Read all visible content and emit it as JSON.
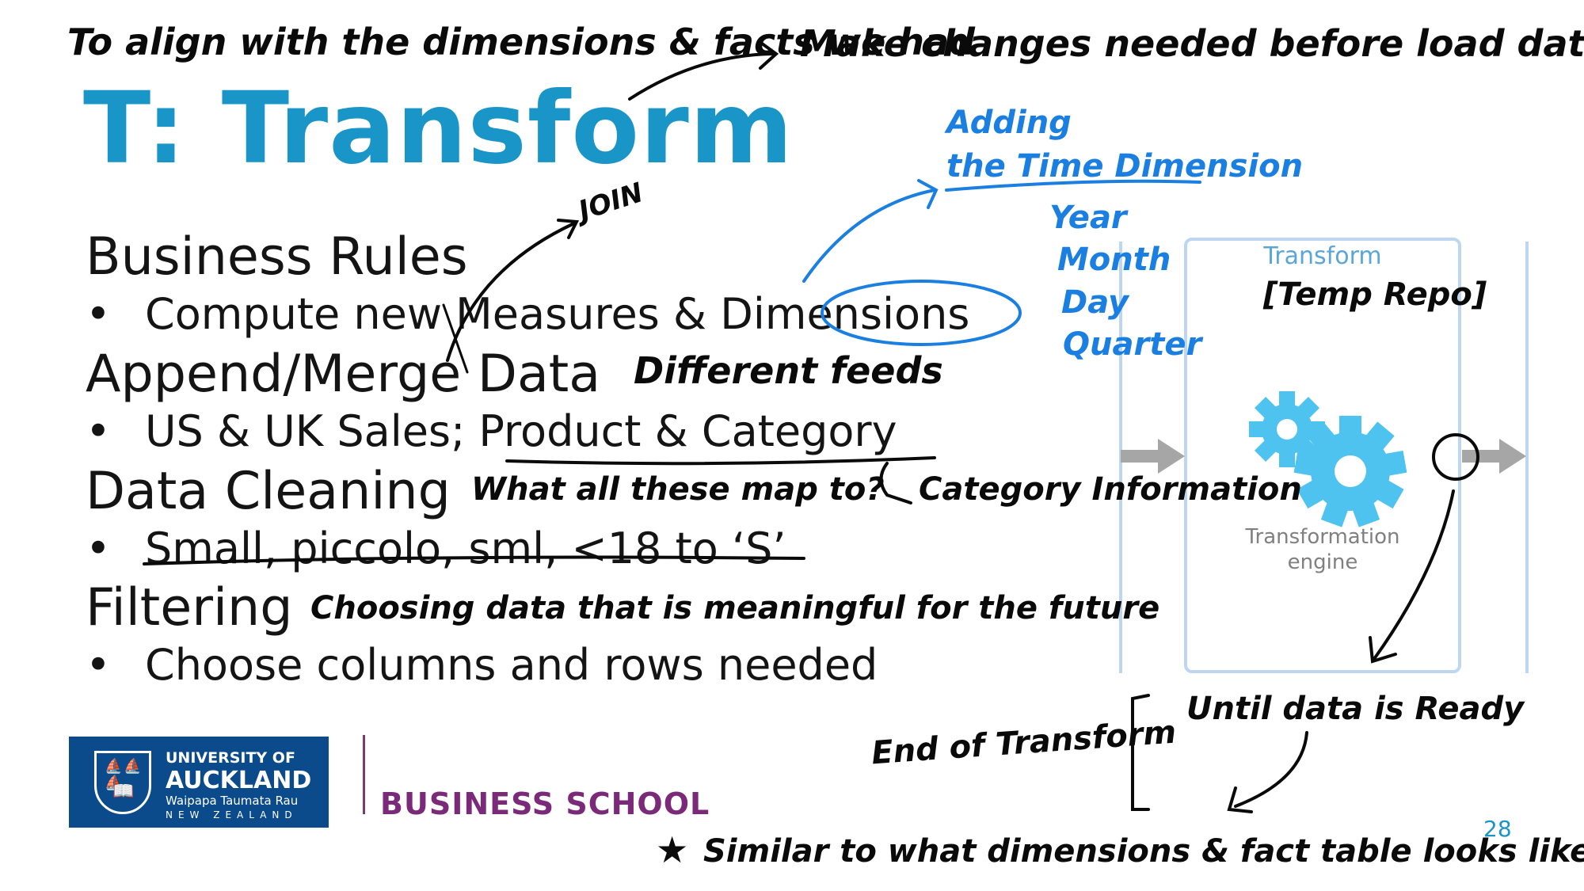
{
  "title": "T: Transform",
  "body": {
    "business_rules": {
      "heading": "Business Rules",
      "bullet": "Compute new Measures & Dimensions"
    },
    "append_merge": {
      "heading": "Append/Merge Data",
      "bullet": "US & UK Sales; Product & Category"
    },
    "data_cleaning": {
      "heading": "Data Cleaning",
      "bullet": "Small, piccolo, sml, <18 to ‘S’"
    },
    "filtering": {
      "heading": "Filtering",
      "bullet": "Choose columns and rows needed"
    },
    "bullet_symbol": "•"
  },
  "annotations": {
    "top_left": "To align with the dimensions & facts we had",
    "top_right": "Make changes needed before load data",
    "join": "JOIN",
    "adding_time_1": "Adding",
    "adding_time_2": "the Time Dimension",
    "time_parts": [
      "Year",
      "Month",
      "Day",
      "Quarter"
    ],
    "different_feeds": "Different feeds",
    "what_map_to": "What all these map to?",
    "category_info": "Category Information",
    "choosing_data": "Choosing data that is meaningful for the future",
    "temp_repo": "[Temp Repo]",
    "end_of_transform": "End of Transform",
    "until_ready": "Until data is Ready",
    "similar_note": "Similar to what dimensions & fact table looks like",
    "star": "★"
  },
  "diagram": {
    "title": "Transform",
    "engine_label_line1": "Transformation",
    "engine_label_line2": "engine",
    "gear_color": "#4fc3f0",
    "arrow_color": "#a6a6a6",
    "box_border_color": "#bcd6f4"
  },
  "logo": {
    "line1": "UNIVERSITY OF",
    "line2": "AUCKLAND",
    "line3": "Waipapa Taumata Rau",
    "line4": "NEW ZEALAND",
    "crest_top": "⛵⛵⛵",
    "crest_book": "📖",
    "bg_color": "#0b4a8b"
  },
  "business_school": "BUSINESS SCHOOL",
  "page_number": "28",
  "colors": {
    "title": "#1a95c8",
    "ink_black": "#0a0a0a",
    "ink_blue": "#1a7fe0",
    "business_school": "#7a2a78"
  }
}
